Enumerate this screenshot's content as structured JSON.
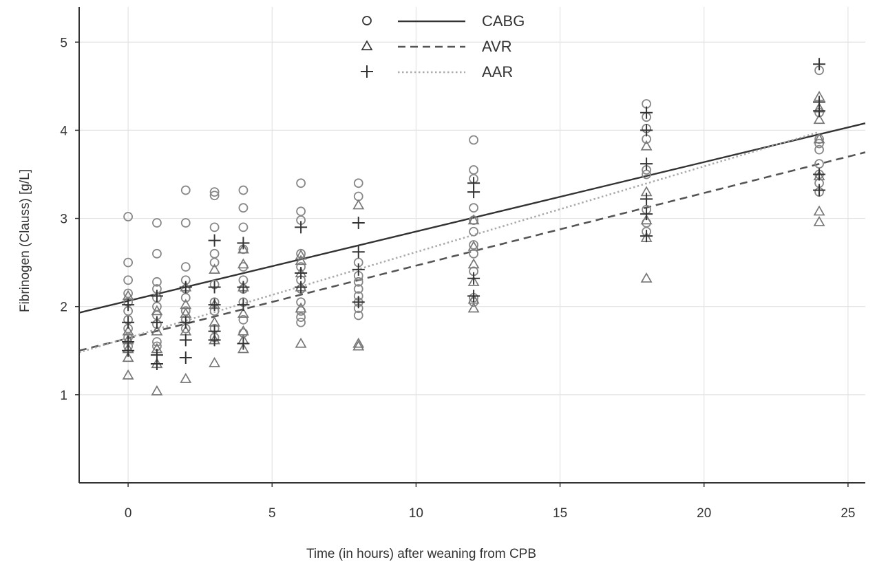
{
  "chart_data": {
    "type": "scatter",
    "title": "",
    "xlabel": "Time (in hours) after weaning from CPB",
    "ylabel": "Fibrinogen (Clauss) [g/L]",
    "xlim": [
      -1.7,
      25.6
    ],
    "ylim": [
      0,
      5.4
    ],
    "x_ticks": [
      0,
      5,
      10,
      15,
      20,
      25
    ],
    "y_ticks": [
      1,
      2,
      3,
      4,
      5
    ],
    "grid": true,
    "legend_position": "top-center",
    "colors": {
      "axis": "#333333",
      "grid": "#e3e3e3",
      "CABG": "#888888",
      "AVR": "#777777",
      "AAR": "#333333",
      "fit_CABG": "#333333",
      "fit_AVR": "#555555",
      "fit_AAR": "#aaaaaa"
    },
    "legend": [
      {
        "label": "CABG",
        "marker": "circle",
        "line": "solid"
      },
      {
        "label": "AVR",
        "marker": "triangle",
        "line": "dashed"
      },
      {
        "label": "AAR",
        "marker": "plus",
        "line": "dotted"
      }
    ],
    "series": [
      {
        "name": "CABG",
        "marker": "circle",
        "points": [
          [
            0,
            3.02
          ],
          [
            0,
            2.5
          ],
          [
            0,
            2.3
          ],
          [
            0,
            2.15
          ],
          [
            0,
            2.05
          ],
          [
            0,
            1.95
          ],
          [
            0,
            1.85
          ],
          [
            0,
            1.75
          ],
          [
            0,
            1.65
          ],
          [
            0,
            1.55
          ],
          [
            1,
            2.95
          ],
          [
            1,
            2.6
          ],
          [
            1,
            2.28
          ],
          [
            1,
            2.2
          ],
          [
            1,
            2.1
          ],
          [
            1,
            2.0
          ],
          [
            1,
            1.9
          ],
          [
            1,
            1.8
          ],
          [
            1,
            1.6
          ],
          [
            1,
            1.55
          ],
          [
            2,
            3.32
          ],
          [
            2,
            2.95
          ],
          [
            2,
            2.45
          ],
          [
            2,
            2.3
          ],
          [
            2,
            2.2
          ],
          [
            2,
            2.1
          ],
          [
            2,
            1.95
          ],
          [
            2,
            1.85
          ],
          [
            2,
            1.75
          ],
          [
            3,
            3.3
          ],
          [
            3,
            3.26
          ],
          [
            3,
            2.9
          ],
          [
            3,
            2.6
          ],
          [
            3,
            2.5
          ],
          [
            3,
            2.25
          ],
          [
            3,
            2.05
          ],
          [
            3,
            1.95
          ],
          [
            3,
            1.75
          ],
          [
            3,
            1.65
          ],
          [
            4,
            3.32
          ],
          [
            4,
            3.12
          ],
          [
            4,
            2.9
          ],
          [
            4,
            2.65
          ],
          [
            4,
            2.45
          ],
          [
            4,
            2.3
          ],
          [
            4,
            2.2
          ],
          [
            4,
            2.05
          ],
          [
            4,
            1.85
          ],
          [
            4,
            1.7
          ],
          [
            6,
            3.4
          ],
          [
            6,
            3.08
          ],
          [
            6,
            2.98
          ],
          [
            6,
            2.6
          ],
          [
            6,
            2.45
          ],
          [
            6,
            2.3
          ],
          [
            6,
            2.2
          ],
          [
            6,
            2.05
          ],
          [
            6,
            1.95
          ],
          [
            6,
            1.88
          ],
          [
            6,
            1.82
          ],
          [
            8,
            3.4
          ],
          [
            8,
            3.25
          ],
          [
            8,
            2.5
          ],
          [
            8,
            2.35
          ],
          [
            8,
            2.28
          ],
          [
            8,
            2.2
          ],
          [
            8,
            2.12
          ],
          [
            8,
            2.05
          ],
          [
            8,
            1.98
          ],
          [
            8,
            1.9
          ],
          [
            12,
            3.89
          ],
          [
            12,
            3.55
          ],
          [
            12,
            3.45
          ],
          [
            12,
            3.12
          ],
          [
            12,
            2.98
          ],
          [
            12,
            2.85
          ],
          [
            12,
            2.7
          ],
          [
            12,
            2.6
          ],
          [
            12,
            2.4
          ],
          [
            12,
            2.1
          ],
          [
            12,
            2.05
          ],
          [
            18,
            4.3
          ],
          [
            18,
            4.15
          ],
          [
            18,
            4.02
          ],
          [
            18,
            3.9
          ],
          [
            18,
            3.55
          ],
          [
            18,
            3.5
          ],
          [
            18,
            3.1
          ],
          [
            18,
            2.95
          ],
          [
            18,
            2.85
          ],
          [
            24,
            4.68
          ],
          [
            24,
            4.2
          ],
          [
            24,
            3.9
          ],
          [
            24,
            3.85
          ],
          [
            24,
            3.78
          ],
          [
            24,
            3.62
          ],
          [
            24,
            3.5
          ],
          [
            24,
            3.4
          ],
          [
            24,
            3.3
          ]
        ]
      },
      {
        "name": "AVR",
        "marker": "triangle",
        "points": [
          [
            0,
            1.22
          ],
          [
            0,
            1.42
          ],
          [
            0,
            1.52
          ],
          [
            0,
            1.62
          ],
          [
            0,
            1.72
          ],
          [
            0,
            2.12
          ],
          [
            1,
            1.04
          ],
          [
            1,
            1.35
          ],
          [
            1,
            1.52
          ],
          [
            1,
            1.72
          ],
          [
            1,
            1.95
          ],
          [
            2,
            1.18
          ],
          [
            2,
            1.72
          ],
          [
            2,
            1.92
          ],
          [
            2,
            2.02
          ],
          [
            2,
            2.22
          ],
          [
            3,
            1.36
          ],
          [
            3,
            1.62
          ],
          [
            3,
            1.82
          ],
          [
            3,
            2.02
          ],
          [
            3,
            2.42
          ],
          [
            4,
            1.52
          ],
          [
            4,
            1.62
          ],
          [
            4,
            1.72
          ],
          [
            4,
            1.92
          ],
          [
            4,
            2.22
          ],
          [
            4,
            2.48
          ],
          [
            4,
            2.65
          ],
          [
            6,
            1.58
          ],
          [
            6,
            1.98
          ],
          [
            6,
            2.22
          ],
          [
            6,
            2.38
          ],
          [
            6,
            2.52
          ],
          [
            6,
            2.58
          ],
          [
            8,
            1.55
          ],
          [
            8,
            1.58
          ],
          [
            8,
            3.15
          ],
          [
            12,
            1.98
          ],
          [
            12,
            2.08
          ],
          [
            12,
            2.28
          ],
          [
            12,
            2.48
          ],
          [
            12,
            2.68
          ],
          [
            12,
            2.98
          ],
          [
            18,
            2.32
          ],
          [
            18,
            2.78
          ],
          [
            18,
            2.98
          ],
          [
            18,
            3.3
          ],
          [
            18,
            3.82
          ],
          [
            24,
            2.96
          ],
          [
            24,
            3.08
          ],
          [
            24,
            3.48
          ],
          [
            24,
            3.9
          ],
          [
            24,
            4.12
          ],
          [
            24,
            4.25
          ],
          [
            24,
            4.38
          ]
        ]
      },
      {
        "name": "AAR",
        "marker": "plus",
        "points": [
          [
            0,
            1.5
          ],
          [
            0,
            1.6
          ],
          [
            0,
            1.82
          ],
          [
            0,
            2.02
          ],
          [
            1,
            1.35
          ],
          [
            1,
            1.45
          ],
          [
            1,
            1.82
          ],
          [
            1,
            2.12
          ],
          [
            2,
            1.42
          ],
          [
            2,
            1.62
          ],
          [
            2,
            1.82
          ],
          [
            2,
            2.22
          ],
          [
            3,
            1.62
          ],
          [
            3,
            1.72
          ],
          [
            3,
            2.02
          ],
          [
            3,
            2.22
          ],
          [
            3,
            2.75
          ],
          [
            4,
            1.58
          ],
          [
            4,
            2.02
          ],
          [
            4,
            2.22
          ],
          [
            4,
            2.72
          ],
          [
            6,
            2.22
          ],
          [
            6,
            2.38
          ],
          [
            6,
            2.9
          ],
          [
            8,
            2.05
          ],
          [
            8,
            2.42
          ],
          [
            8,
            2.62
          ],
          [
            8,
            2.95
          ],
          [
            12,
            2.12
          ],
          [
            12,
            2.32
          ],
          [
            12,
            3.3
          ],
          [
            12,
            3.4
          ],
          [
            18,
            2.8
          ],
          [
            18,
            3.05
          ],
          [
            18,
            3.22
          ],
          [
            18,
            3.62
          ],
          [
            18,
            4.0
          ],
          [
            18,
            4.2
          ],
          [
            24,
            3.32
          ],
          [
            24,
            3.5
          ],
          [
            24,
            4.22
          ],
          [
            24,
            4.32
          ],
          [
            24,
            4.75
          ]
        ]
      }
    ],
    "fit_lines": [
      {
        "name": "CABG",
        "style": "solid",
        "x": [
          -1.7,
          25.6
        ],
        "y": [
          1.93,
          4.08
        ]
      },
      {
        "name": "AVR",
        "style": "dashed",
        "x": [
          -1.7,
          25.6
        ],
        "y": [
          1.5,
          3.75
        ]
      },
      {
        "name": "AAR",
        "style": "dotted",
        "x": [
          -1.7,
          24.0
        ],
        "y": [
          1.48,
          3.98
        ]
      }
    ]
  }
}
